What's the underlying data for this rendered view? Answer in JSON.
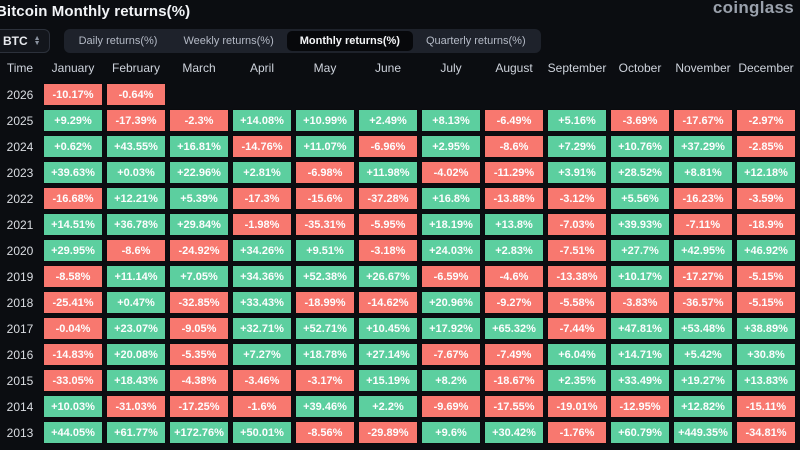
{
  "header": {
    "title": "Bitcoin Monthly returns(%)",
    "logo": "coinglass"
  },
  "controls": {
    "symbol": "BTC",
    "tabs": [
      {
        "label": "Daily returns(%)",
        "active": false
      },
      {
        "label": "Weekly returns(%)",
        "active": false
      },
      {
        "label": "Monthly returns(%)",
        "active": true
      },
      {
        "label": "Quarterly returns(%)",
        "active": false
      }
    ]
  },
  "colors": {
    "positive": "#5ccf9f",
    "negative": "#f8786f"
  },
  "chart_data": {
    "type": "heatmap",
    "title": "Bitcoin Monthly returns(%)",
    "time_label": "Time",
    "months": [
      "January",
      "February",
      "March",
      "April",
      "May",
      "June",
      "July",
      "August",
      "September",
      "October",
      "November",
      "December"
    ],
    "rows": [
      {
        "year": "2026",
        "values": [
          "-10.17%",
          "-0.64%",
          null,
          null,
          null,
          null,
          null,
          null,
          null,
          null,
          null,
          null
        ]
      },
      {
        "year": "2025",
        "values": [
          "+9.29%",
          "-17.39%",
          "-2.3%",
          "+14.08%",
          "+10.99%",
          "+2.49%",
          "+8.13%",
          "-6.49%",
          "+5.16%",
          "-3.69%",
          "-17.67%",
          "-2.97%"
        ]
      },
      {
        "year": "2024",
        "values": [
          "+0.62%",
          "+43.55%",
          "+16.81%",
          "-14.76%",
          "+11.07%",
          "-6.96%",
          "+2.95%",
          "-8.6%",
          "+7.29%",
          "+10.76%",
          "+37.29%",
          "-2.85%"
        ]
      },
      {
        "year": "2023",
        "values": [
          "+39.63%",
          "+0.03%",
          "+22.96%",
          "+2.81%",
          "-6.98%",
          "+11.98%",
          "-4.02%",
          "-11.29%",
          "+3.91%",
          "+28.52%",
          "+8.81%",
          "+12.18%"
        ]
      },
      {
        "year": "2022",
        "values": [
          "-16.68%",
          "+12.21%",
          "+5.39%",
          "-17.3%",
          "-15.6%",
          "-37.28%",
          "+16.8%",
          "-13.88%",
          "-3.12%",
          "+5.56%",
          "-16.23%",
          "-3.59%"
        ]
      },
      {
        "year": "2021",
        "values": [
          "+14.51%",
          "+36.78%",
          "+29.84%",
          "-1.98%",
          "-35.31%",
          "-5.95%",
          "+18.19%",
          "+13.8%",
          "-7.03%",
          "+39.93%",
          "-7.11%",
          "-18.9%"
        ]
      },
      {
        "year": "2020",
        "values": [
          "+29.95%",
          "-8.6%",
          "-24.92%",
          "+34.26%",
          "+9.51%",
          "-3.18%",
          "+24.03%",
          "+2.83%",
          "-7.51%",
          "+27.7%",
          "+42.95%",
          "+46.92%"
        ]
      },
      {
        "year": "2019",
        "values": [
          "-8.58%",
          "+11.14%",
          "+7.05%",
          "+34.36%",
          "+52.38%",
          "+26.67%",
          "-6.59%",
          "-4.6%",
          "-13.38%",
          "+10.17%",
          "-17.27%",
          "-5.15%"
        ]
      },
      {
        "year": "2018",
        "values": [
          "-25.41%",
          "+0.47%",
          "-32.85%",
          "+33.43%",
          "-18.99%",
          "-14.62%",
          "+20.96%",
          "-9.27%",
          "-5.58%",
          "-3.83%",
          "-36.57%",
          "-5.15%"
        ]
      },
      {
        "year": "2017",
        "values": [
          "-0.04%",
          "+23.07%",
          "-9.05%",
          "+32.71%",
          "+52.71%",
          "+10.45%",
          "+17.92%",
          "+65.32%",
          "-7.44%",
          "+47.81%",
          "+53.48%",
          "+38.89%"
        ]
      },
      {
        "year": "2016",
        "values": [
          "-14.83%",
          "+20.08%",
          "-5.35%",
          "+7.27%",
          "+18.78%",
          "+27.14%",
          "-7.67%",
          "-7.49%",
          "+6.04%",
          "+14.71%",
          "+5.42%",
          "+30.8%"
        ]
      },
      {
        "year": "2015",
        "values": [
          "-33.05%",
          "+18.43%",
          "-4.38%",
          "-3.46%",
          "-3.17%",
          "+15.19%",
          "+8.2%",
          "-18.67%",
          "+2.35%",
          "+33.49%",
          "+19.27%",
          "+13.83%"
        ]
      },
      {
        "year": "2014",
        "values": [
          "+10.03%",
          "-31.03%",
          "-17.25%",
          "-1.6%",
          "+39.46%",
          "+2.2%",
          "-9.69%",
          "-17.55%",
          "-19.01%",
          "-12.95%",
          "+12.82%",
          "-15.11%"
        ]
      },
      {
        "year": "2013",
        "values": [
          "+44.05%",
          "+61.77%",
          "+172.76%",
          "+50.01%",
          "-8.56%",
          "-29.89%",
          "+9.6%",
          "+30.42%",
          "-1.76%",
          "+60.79%",
          "+449.35%",
          "-34.81%"
        ]
      }
    ]
  }
}
